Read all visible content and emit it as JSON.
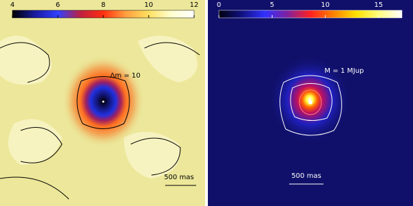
{
  "chart_data": [
    {
      "type": "image",
      "colorbar_lim": [
        4,
        12
      ],
      "colorbar_ticks": [
        4,
        6,
        8,
        10,
        12
      ],
      "colormap": [
        "#000000",
        "#1a1aa0",
        "#3040ff",
        "#c02040",
        "#ff3010",
        "#ffa040",
        "#ffe060",
        "#ffffd0",
        "#ffffff"
      ],
      "annotation": "Δm = 10",
      "scale_label": "500 mas"
    },
    {
      "type": "image",
      "colorbar_lim": [
        0,
        17.2
      ],
      "colorbar_ticks": [
        0,
        5,
        10,
        15
      ],
      "colormap": [
        "#000010",
        "#101080",
        "#3030ff",
        "#8020a0",
        "#ff2020",
        "#ff8000",
        "#ffe000",
        "#ffff80",
        "#ffffff"
      ],
      "annotation": "M = 1 MJup",
      "scale_label": "500 mas"
    }
  ]
}
